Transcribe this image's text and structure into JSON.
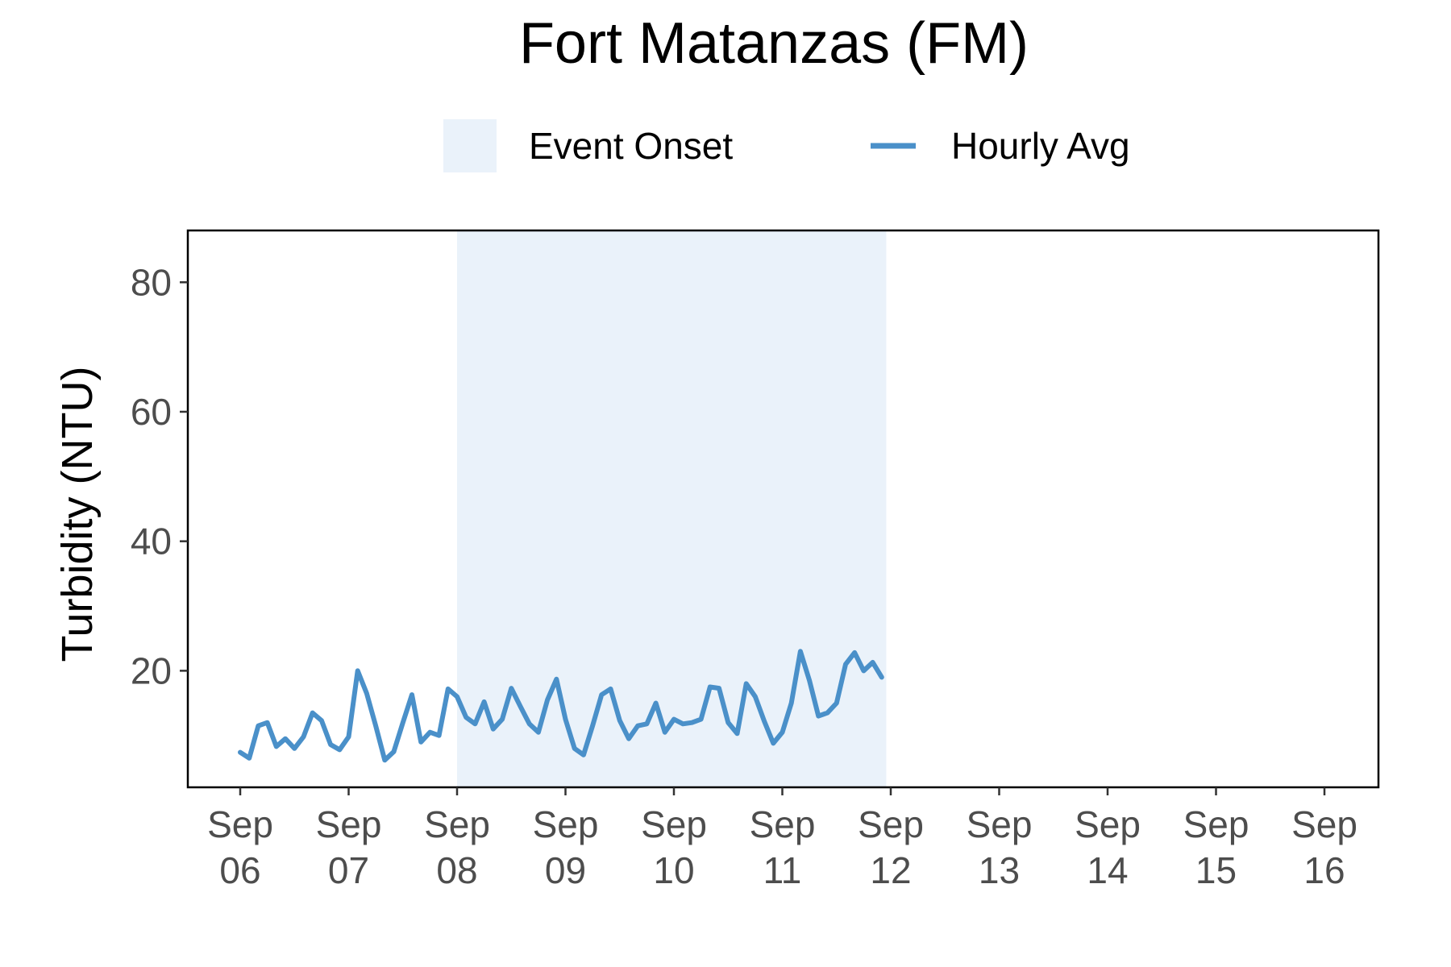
{
  "chart_data": {
    "type": "line",
    "title": "Fort Matanzas (FM)",
    "xlabel": "",
    "ylabel": "Turbidity (NTU)",
    "xlim": [
      "2023-09-06T00:00",
      "2023-09-16T00:00"
    ],
    "ylim": [
      2,
      88
    ],
    "grid": false,
    "legend_position": "top",
    "legend": [
      {
        "label": "Event Onset",
        "kind": "shaded-region",
        "color": "#eaf2fa"
      },
      {
        "label": "Hourly Avg",
        "kind": "line",
        "color": "#4a90c9"
      }
    ],
    "x_ticks": [
      {
        "value": "2023-09-06T00:00",
        "label": [
          "Sep",
          "06"
        ]
      },
      {
        "value": "2023-09-07T00:00",
        "label": [
          "Sep",
          "07"
        ]
      },
      {
        "value": "2023-09-08T00:00",
        "label": [
          "Sep",
          "08"
        ]
      },
      {
        "value": "2023-09-09T00:00",
        "label": [
          "Sep",
          "09"
        ]
      },
      {
        "value": "2023-09-10T00:00",
        "label": [
          "Sep",
          "10"
        ]
      },
      {
        "value": "2023-09-11T00:00",
        "label": [
          "Sep",
          "11"
        ]
      },
      {
        "value": "2023-09-12T00:00",
        "label": [
          "Sep",
          "12"
        ]
      },
      {
        "value": "2023-09-13T00:00",
        "label": [
          "Sep",
          "13"
        ]
      },
      {
        "value": "2023-09-14T00:00",
        "label": [
          "Sep",
          "14"
        ]
      },
      {
        "value": "2023-09-15T00:00",
        "label": [
          "Sep",
          "15"
        ]
      },
      {
        "value": "2023-09-16T00:00",
        "label": [
          "Sep",
          "16"
        ]
      }
    ],
    "y_ticks": [
      20,
      40,
      60,
      80
    ],
    "shaded_region": {
      "name": "Event Onset",
      "start": "2023-09-08T00:00",
      "end": "2023-09-11T23:00"
    },
    "series": [
      {
        "name": "Hourly Avg",
        "color": "#4a90c9",
        "points": [
          [
            "2023-09-06T00:00",
            7.4
          ],
          [
            "2023-09-06T02:00",
            6.5
          ],
          [
            "2023-09-06T04:00",
            11.5
          ],
          [
            "2023-09-06T06:00",
            12.0
          ],
          [
            "2023-09-06T08:00",
            8.3
          ],
          [
            "2023-09-06T10:00",
            9.5
          ],
          [
            "2023-09-06T12:00",
            8.0
          ],
          [
            "2023-09-06T14:00",
            9.8
          ],
          [
            "2023-09-06T16:00",
            13.5
          ],
          [
            "2023-09-06T18:00",
            12.3
          ],
          [
            "2023-09-06T20:00",
            8.6
          ],
          [
            "2023-09-06T22:00",
            7.8
          ],
          [
            "2023-09-07T00:00",
            9.8
          ],
          [
            "2023-09-07T02:00",
            20.0
          ],
          [
            "2023-09-07T04:00",
            16.5
          ],
          [
            "2023-09-07T06:00",
            11.5
          ],
          [
            "2023-09-07T08:00",
            6.2
          ],
          [
            "2023-09-07T10:00",
            7.5
          ],
          [
            "2023-09-07T12:00",
            12.0
          ],
          [
            "2023-09-07T14:00",
            16.3
          ],
          [
            "2023-09-07T16:00",
            9.0
          ],
          [
            "2023-09-07T18:00",
            10.5
          ],
          [
            "2023-09-07T20:00",
            10.0
          ],
          [
            "2023-09-07T22:00",
            17.2
          ],
          [
            "2023-09-08T00:00",
            16.0
          ],
          [
            "2023-09-08T02:00",
            12.8
          ],
          [
            "2023-09-08T04:00",
            11.8
          ],
          [
            "2023-09-08T06:00",
            15.2
          ],
          [
            "2023-09-08T08:00",
            11.0
          ],
          [
            "2023-09-08T10:00",
            12.5
          ],
          [
            "2023-09-08T12:00",
            17.3
          ],
          [
            "2023-09-08T14:00",
            14.5
          ],
          [
            "2023-09-08T16:00",
            11.8
          ],
          [
            "2023-09-08T18:00",
            10.5
          ],
          [
            "2023-09-08T20:00",
            15.5
          ],
          [
            "2023-09-08T22:00",
            18.7
          ],
          [
            "2023-09-09T00:00",
            12.5
          ],
          [
            "2023-09-09T02:00",
            8.0
          ],
          [
            "2023-09-09T04:00",
            7.0
          ],
          [
            "2023-09-09T06:00",
            11.5
          ],
          [
            "2023-09-09T08:00",
            16.3
          ],
          [
            "2023-09-09T10:00",
            17.2
          ],
          [
            "2023-09-09T12:00",
            12.3
          ],
          [
            "2023-09-09T14:00",
            9.5
          ],
          [
            "2023-09-09T16:00",
            11.5
          ],
          [
            "2023-09-09T18:00",
            11.8
          ],
          [
            "2023-09-09T20:00",
            15.0
          ],
          [
            "2023-09-09T22:00",
            10.5
          ],
          [
            "2023-09-10T00:00",
            12.5
          ],
          [
            "2023-09-10T02:00",
            11.8
          ],
          [
            "2023-09-10T04:00",
            12.0
          ],
          [
            "2023-09-10T06:00",
            12.5
          ],
          [
            "2023-09-10T08:00",
            17.5
          ],
          [
            "2023-09-10T10:00",
            17.3
          ],
          [
            "2023-09-10T12:00",
            12.0
          ],
          [
            "2023-09-10T14:00",
            10.3
          ],
          [
            "2023-09-10T16:00",
            18.0
          ],
          [
            "2023-09-10T18:00",
            16.0
          ],
          [
            "2023-09-10T20:00",
            12.2
          ],
          [
            "2023-09-10T22:00",
            8.8
          ],
          [
            "2023-09-11T00:00",
            10.5
          ],
          [
            "2023-09-11T02:00",
            15.0
          ],
          [
            "2023-09-11T04:00",
            23.0
          ],
          [
            "2023-09-11T06:00",
            18.5
          ],
          [
            "2023-09-11T08:00",
            13.0
          ],
          [
            "2023-09-11T10:00",
            13.5
          ],
          [
            "2023-09-11T12:00",
            15.0
          ],
          [
            "2023-09-11T14:00",
            21.0
          ],
          [
            "2023-09-11T16:00",
            22.8
          ],
          [
            "2023-09-11T18:00",
            20.0
          ],
          [
            "2023-09-11T20:00",
            21.3
          ],
          [
            "2023-09-11T22:00",
            19.0
          ]
        ]
      }
    ]
  }
}
